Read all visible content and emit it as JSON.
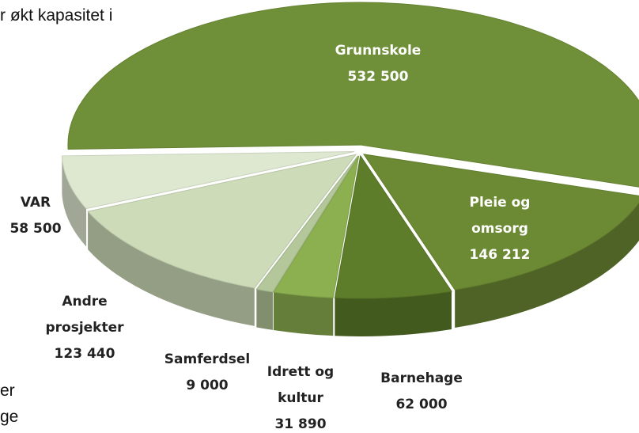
{
  "text_fragments": [
    "r økt kapasitet i",
    "er",
    "ge"
  ],
  "chart_data": {
    "type": "pie",
    "categories": [
      "Grunnskole",
      "Pleie og omsorg",
      "Barnehage",
      "Idrett og kultur",
      "Samferdsel",
      "Andre prosjekter",
      "VAR"
    ],
    "values": [
      532500,
      146212,
      62000,
      31890,
      9000,
      123440,
      58500
    ],
    "value_labels": [
      "532 500",
      "146 212",
      "62 000",
      "31 890",
      "9 000",
      "123 440",
      "58 500"
    ],
    "colors": [
      "#6f8f38",
      "#6c8a33",
      "#5d7d2a",
      "#8cb050",
      "#b3c79a",
      "#cddbb9",
      "#dee8d1"
    ]
  }
}
